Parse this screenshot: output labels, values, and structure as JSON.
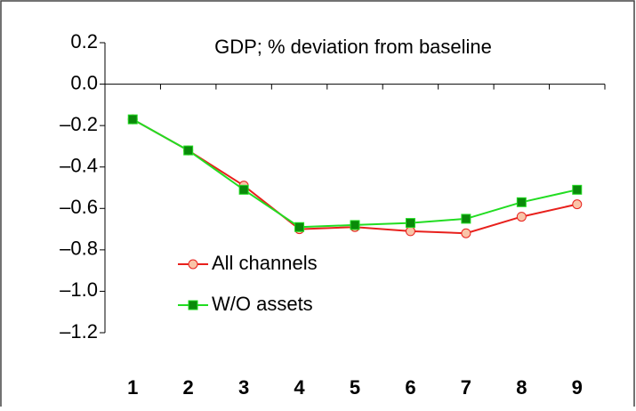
{
  "chart_data": {
    "type": "line",
    "title": "GDP; % deviation from baseline",
    "categories": [
      "1",
      "2",
      "3",
      "4",
      "5",
      "6",
      "7",
      "8",
      "9"
    ],
    "series": [
      {
        "name": "All channels",
        "color": "#e8201c",
        "marker_color": "#f9c4a8",
        "marker": "circle",
        "values": [
          -0.17,
          -0.32,
          -0.49,
          -0.7,
          -0.69,
          -0.71,
          -0.72,
          -0.64,
          -0.58
        ]
      },
      {
        "name": "W/O assets",
        "color": "#22dd22",
        "marker_color": "#0a8a0a",
        "marker": "square",
        "values": [
          -0.17,
          -0.32,
          -0.51,
          -0.69,
          -0.68,
          -0.67,
          -0.65,
          -0.57,
          -0.51
        ]
      }
    ],
    "ylim": [
      -1.2,
      0.2
    ],
    "yticks": [
      0.2,
      {
        "value": 0,
        "label": "0.0"
      },
      {
        "value": -0.2,
        "label": "–0.2"
      },
      {
        "value": -0.4,
        "label": "–0.4"
      },
      {
        "value": -0.6,
        "label": "–0.6"
      },
      {
        "value": -0.8,
        "label": "–0.8"
      },
      {
        "value": -1.0,
        "label": "–1.0"
      },
      {
        "value": -1.2,
        "label": "–1.2"
      }
    ],
    "legend": "lower left",
    "grid": false
  }
}
